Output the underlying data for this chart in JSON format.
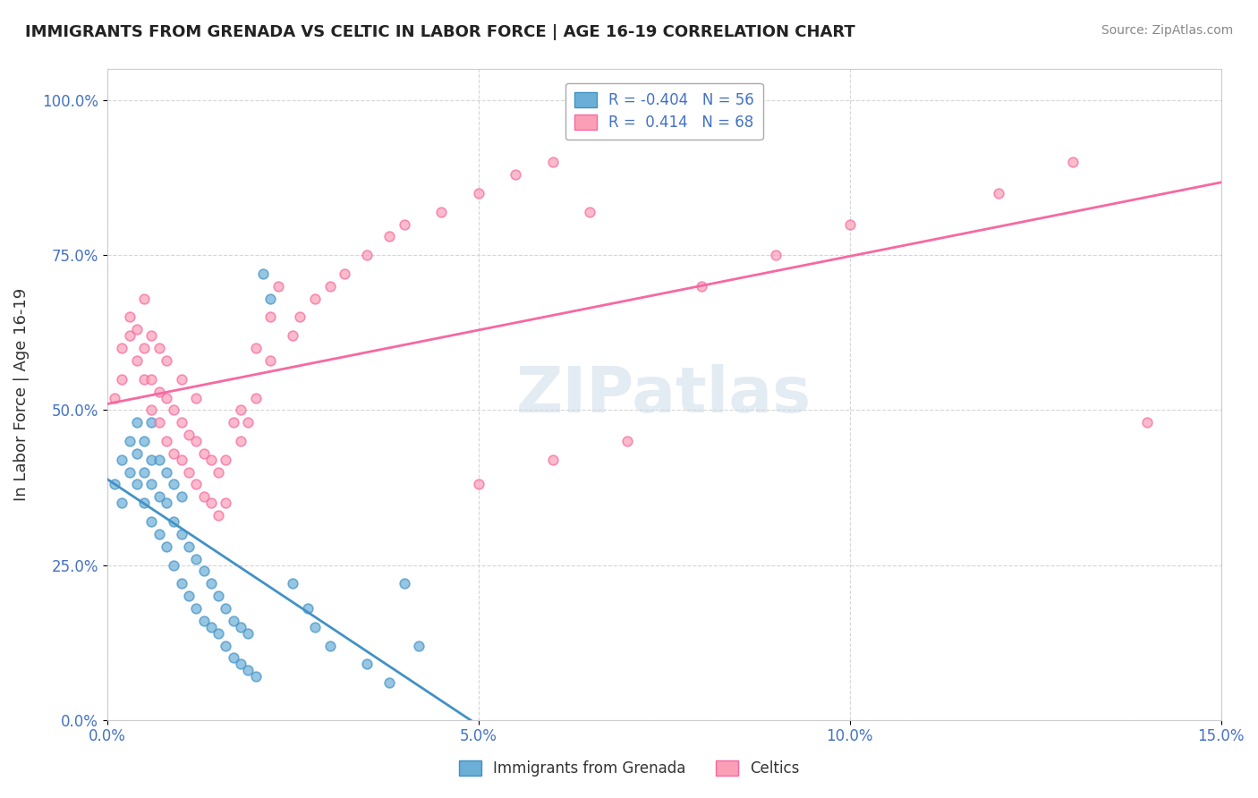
{
  "title": "IMMIGRANTS FROM GRENADA VS CELTIC IN LABOR FORCE | AGE 16-19 CORRELATION CHART",
  "source": "Source: ZipAtlas.com",
  "xlabel_bottom": "",
  "ylabel": "In Labor Force | Age 16-19",
  "legend_label1": "Immigrants from Grenada",
  "legend_label2": "Celtics",
  "R1": -0.404,
  "N1": 56,
  "R2": 0.414,
  "N2": 68,
  "xlim": [
    0.0,
    0.15
  ],
  "ylim": [
    0.0,
    1.05
  ],
  "xticks": [
    0.0,
    0.05,
    0.1,
    0.15
  ],
  "xtick_labels": [
    "0.0%",
    "5.0%",
    "10.0%",
    "15.0%"
  ],
  "yticks": [
    0.0,
    0.25,
    0.5,
    0.75,
    1.0
  ],
  "ytick_labels": [
    "0.0%",
    "25.0%",
    "50.0%",
    "75.0%",
    "100.0%"
  ],
  "color_blue": "#6baed6",
  "color_pink": "#fa9fb5",
  "line_blue": "#4292c6",
  "line_pink": "#f768a1",
  "watermark": "ZIPatlas",
  "watermark_color": "#c8d8e8",
  "background": "#ffffff",
  "blue_scatter_x": [
    0.001,
    0.002,
    0.002,
    0.003,
    0.003,
    0.004,
    0.004,
    0.004,
    0.005,
    0.005,
    0.005,
    0.006,
    0.006,
    0.006,
    0.006,
    0.007,
    0.007,
    0.007,
    0.008,
    0.008,
    0.008,
    0.009,
    0.009,
    0.009,
    0.01,
    0.01,
    0.01,
    0.011,
    0.011,
    0.012,
    0.012,
    0.013,
    0.013,
    0.014,
    0.014,
    0.015,
    0.015,
    0.016,
    0.016,
    0.017,
    0.017,
    0.018,
    0.018,
    0.019,
    0.019,
    0.02,
    0.021,
    0.022,
    0.025,
    0.027,
    0.028,
    0.03,
    0.035,
    0.038,
    0.04,
    0.042
  ],
  "blue_scatter_y": [
    0.38,
    0.42,
    0.35,
    0.4,
    0.45,
    0.38,
    0.43,
    0.48,
    0.35,
    0.4,
    0.45,
    0.32,
    0.38,
    0.42,
    0.48,
    0.3,
    0.36,
    0.42,
    0.28,
    0.35,
    0.4,
    0.25,
    0.32,
    0.38,
    0.22,
    0.3,
    0.36,
    0.2,
    0.28,
    0.18,
    0.26,
    0.16,
    0.24,
    0.15,
    0.22,
    0.14,
    0.2,
    0.12,
    0.18,
    0.1,
    0.16,
    0.09,
    0.15,
    0.08,
    0.14,
    0.07,
    0.72,
    0.68,
    0.22,
    0.18,
    0.15,
    0.12,
    0.09,
    0.06,
    0.22,
    0.12
  ],
  "pink_scatter_x": [
    0.001,
    0.002,
    0.002,
    0.003,
    0.003,
    0.004,
    0.004,
    0.005,
    0.005,
    0.005,
    0.006,
    0.006,
    0.006,
    0.007,
    0.007,
    0.007,
    0.008,
    0.008,
    0.008,
    0.009,
    0.009,
    0.01,
    0.01,
    0.01,
    0.011,
    0.011,
    0.012,
    0.012,
    0.012,
    0.013,
    0.013,
    0.014,
    0.014,
    0.015,
    0.015,
    0.016,
    0.016,
    0.017,
    0.018,
    0.018,
    0.019,
    0.02,
    0.02,
    0.022,
    0.022,
    0.023,
    0.025,
    0.026,
    0.028,
    0.03,
    0.032,
    0.035,
    0.038,
    0.04,
    0.045,
    0.05,
    0.055,
    0.06,
    0.065,
    0.07,
    0.08,
    0.09,
    0.1,
    0.12,
    0.13,
    0.05,
    0.06,
    0.14
  ],
  "pink_scatter_y": [
    0.52,
    0.55,
    0.6,
    0.62,
    0.65,
    0.58,
    0.63,
    0.55,
    0.6,
    0.68,
    0.5,
    0.55,
    0.62,
    0.48,
    0.53,
    0.6,
    0.45,
    0.52,
    0.58,
    0.43,
    0.5,
    0.42,
    0.48,
    0.55,
    0.4,
    0.46,
    0.38,
    0.45,
    0.52,
    0.36,
    0.43,
    0.35,
    0.42,
    0.33,
    0.4,
    0.35,
    0.42,
    0.48,
    0.45,
    0.5,
    0.48,
    0.52,
    0.6,
    0.58,
    0.65,
    0.7,
    0.62,
    0.65,
    0.68,
    0.7,
    0.72,
    0.75,
    0.78,
    0.8,
    0.82,
    0.85,
    0.88,
    0.9,
    0.82,
    0.45,
    0.7,
    0.75,
    0.8,
    0.85,
    0.9,
    0.38,
    0.42,
    0.48
  ]
}
